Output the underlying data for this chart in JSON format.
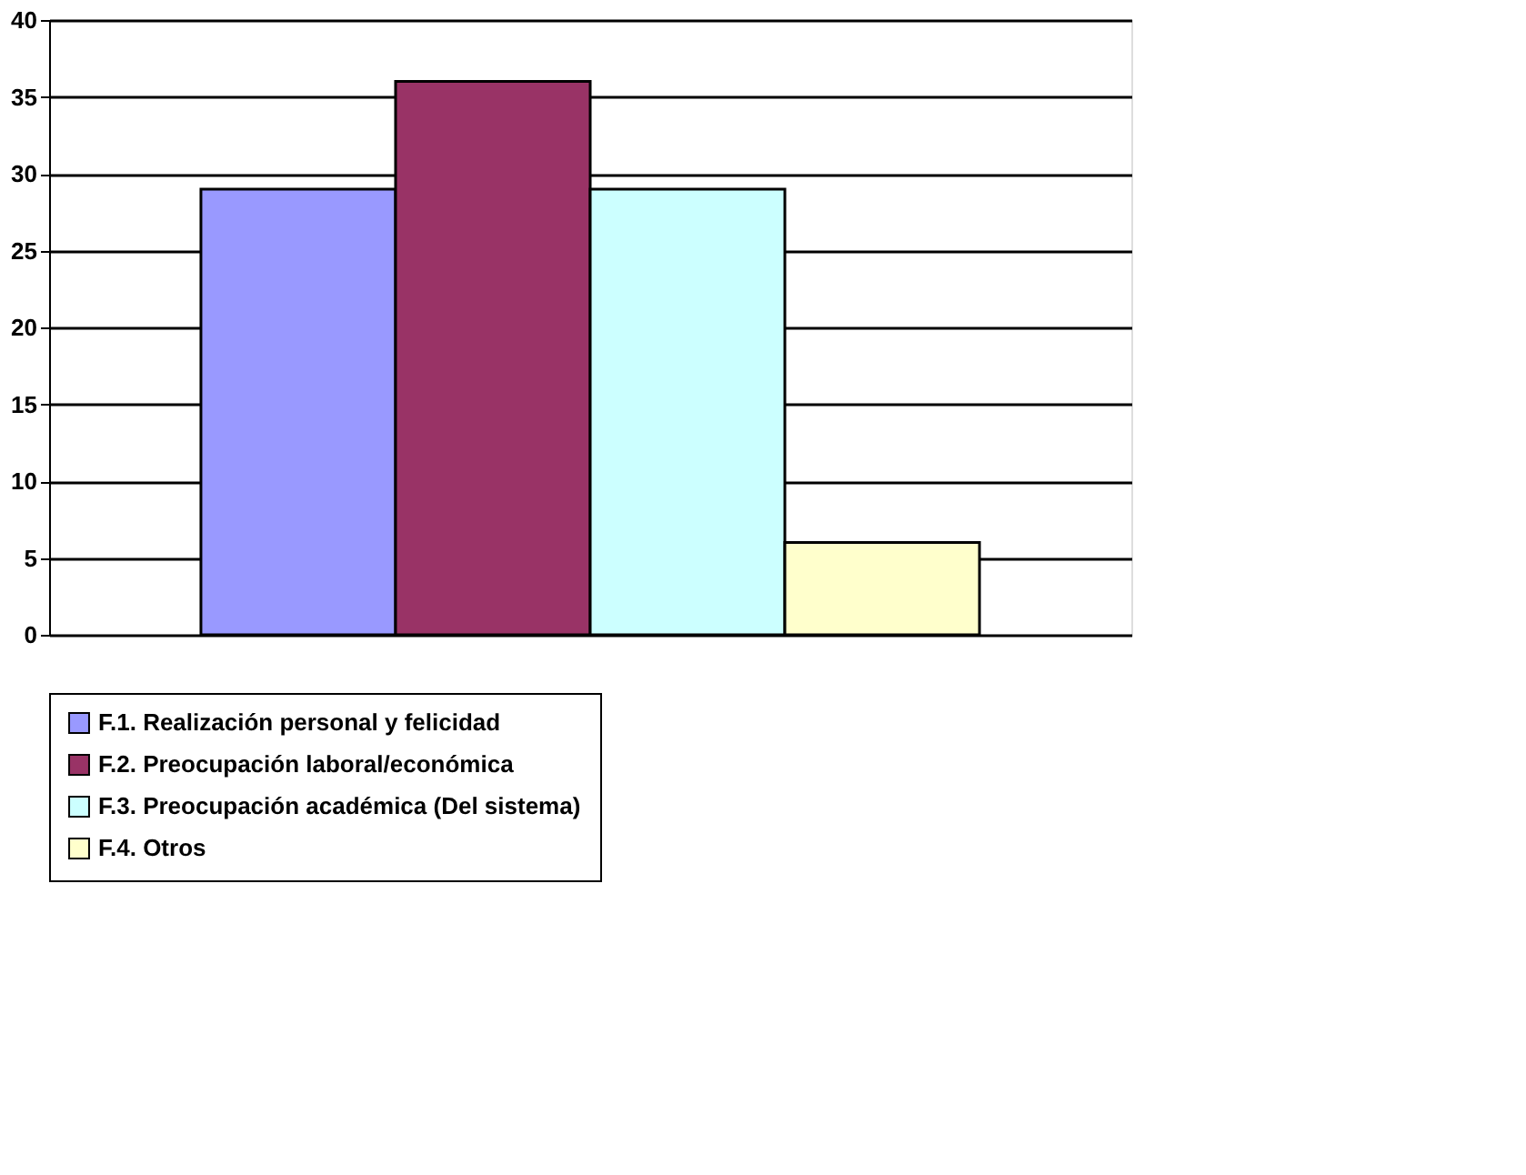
{
  "chart_data": {
    "type": "bar",
    "categories": [
      null
    ],
    "series": [
      {
        "name": "F.1. Realización personal y felicidad",
        "color": "#9999ff",
        "values": [
          29
        ]
      },
      {
        "name": "F.2. Preocupación laboral/económica",
        "color": "#993366",
        "values": [
          36
        ]
      },
      {
        "name": "F.3. Preocupación académica (Del sistema)",
        "color": "#ccffff",
        "values": [
          29
        ]
      },
      {
        "name": "F.4. Otros",
        "color": "#ffffcc",
        "values": [
          6
        ]
      }
    ],
    "ylim": [
      0,
      40
    ],
    "yticks": [
      0,
      5,
      10,
      15,
      20,
      25,
      30,
      35,
      40
    ],
    "grid": "y",
    "legend": "bottom"
  }
}
